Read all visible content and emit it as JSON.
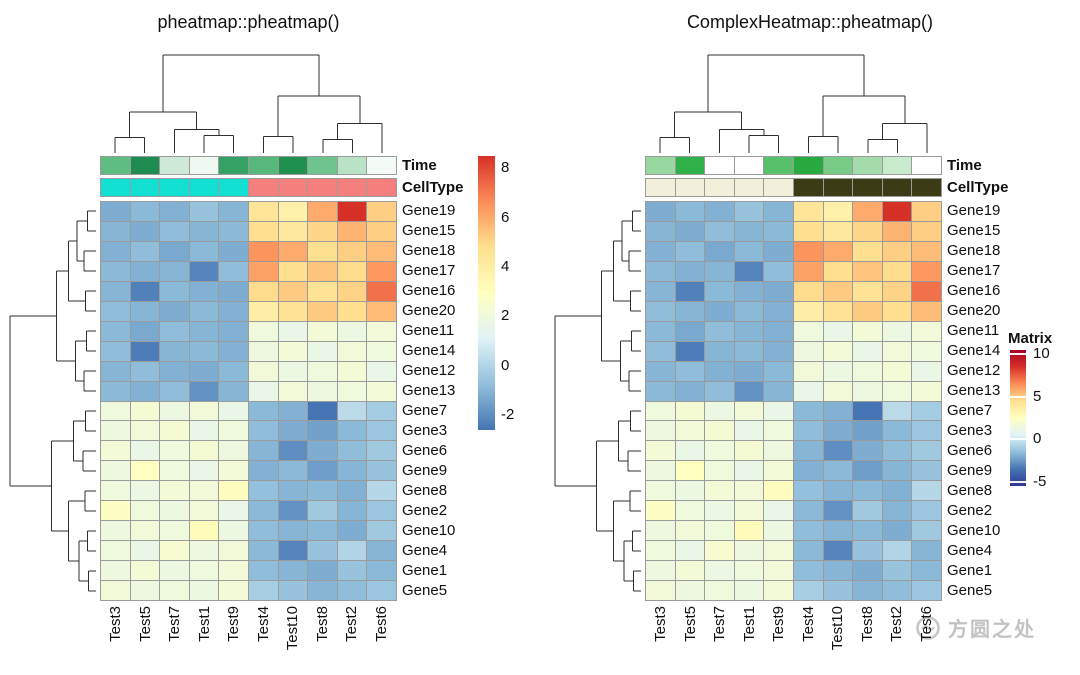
{
  "panels": [
    {
      "title": "pheatmap::pheatmap()",
      "annotations": {
        "time_label": "Time",
        "celltype_label": "CellType",
        "time_colors": [
          "#60BD82",
          "#1E8B4F",
          "#CFE9D8",
          "#EFF9F2",
          "#34A265",
          "#57B87B",
          "#20904F",
          "#6FC38D",
          "#B9E2C6",
          "#F4FBF6"
        ],
        "celltype_colors": [
          "#12E0D3",
          "#12E0D3",
          "#12E0D3",
          "#12E0D3",
          "#12E0D3",
          "#F57F7F",
          "#F57F7F",
          "#F57F7F",
          "#F57F7F",
          "#F57F7F"
        ]
      },
      "legend": {
        "ticks": [
          8,
          6,
          4,
          2,
          0,
          -2
        ],
        "range": [
          -2.6,
          8.5
        ],
        "bar_colors": [
          "#4575B4",
          "#91BFDB",
          "#E0F3F8",
          "#FFFFBF",
          "#FEE090",
          "#FC8D59",
          "#D73027"
        ]
      }
    },
    {
      "title": "ComplexHeatmap::pheatmap()",
      "annotations": {
        "time_label": "Time",
        "celltype_label": "CellType",
        "time_colors": [
          "#98D79F",
          "#2FB049",
          "#FFFFFF",
          "#FFFFFF",
          "#57C06A",
          "#27AA3F",
          "#77CB86",
          "#A4DBAA",
          "#C8EACD",
          "#FFFFFF"
        ],
        "celltype_colors": [
          "#F2F0DA",
          "#F2F0DA",
          "#F2F0DA",
          "#F2F0DA",
          "#F2F0DA",
          "#3B3C15",
          "#3B3C15",
          "#3B3C15",
          "#3B3C15",
          "#3B3C15"
        ]
      },
      "legend": {
        "title": "Matrix",
        "ticks": [
          10,
          5,
          0,
          -5
        ],
        "range": [
          -5.5,
          10.5
        ],
        "bar_colors": [
          "#313695",
          "#4575B4",
          "#91BFDB",
          "#E0F3F8",
          "#FFFFBF",
          "#FEE090",
          "#FC8D59",
          "#D73027",
          "#A50026"
        ]
      }
    }
  ],
  "chart_data": {
    "type": "heatmap",
    "note": "Both panels display the same clustered matrix; rows/columns listed in clustered display order",
    "rows": [
      "Gene19",
      "Gene15",
      "Gene18",
      "Gene17",
      "Gene16",
      "Gene20",
      "Gene11",
      "Gene14",
      "Gene12",
      "Gene13",
      "Gene7",
      "Gene3",
      "Gene6",
      "Gene9",
      "Gene8",
      "Gene2",
      "Gene10",
      "Gene4",
      "Gene1",
      "Gene5"
    ],
    "columns": [
      "Test3",
      "Test5",
      "Test7",
      "Test1",
      "Test9",
      "Test4",
      "Test10",
      "Test8",
      "Test2",
      "Test6"
    ],
    "values": [
      [
        -1.2,
        -0.9,
        -1.1,
        -0.6,
        -1.0,
        4.5,
        3.8,
        6.0,
        8.5,
        5.2
      ],
      [
        -1.0,
        -1.2,
        -0.8,
        -1.0,
        -0.9,
        4.8,
        4.3,
        5.0,
        5.8,
        5.2
      ],
      [
        -1.1,
        -0.8,
        -1.3,
        -0.9,
        -1.2,
        6.5,
        6.0,
        4.8,
        5.2,
        5.6
      ],
      [
        -0.9,
        -1.1,
        -1.0,
        -2.2,
        -0.8,
        6.2,
        4.8,
        5.4,
        4.9,
        6.4
      ],
      [
        -1.0,
        -2.3,
        -0.9,
        -1.1,
        -1.2,
        4.9,
        5.3,
        4.6,
        5.1,
        7.2
      ],
      [
        -0.8,
        -1.0,
        -1.2,
        -0.9,
        -1.1,
        4.0,
        4.6,
        5.3,
        4.8,
        5.6
      ],
      [
        -0.9,
        -1.3,
        -0.8,
        -1.0,
        -1.1,
        2.0,
        1.7,
        2.2,
        1.8,
        2.1
      ],
      [
        -0.8,
        -2.4,
        -1.0,
        -0.9,
        -1.1,
        1.9,
        2.2,
        1.7,
        2.1,
        2.0
      ],
      [
        -1.0,
        -0.8,
        -1.1,
        -1.2,
        -0.9,
        2.1,
        1.8,
        2.0,
        2.2,
        1.7
      ],
      [
        -0.9,
        -1.1,
        -0.8,
        -1.9,
        -1.0,
        1.7,
        2.1,
        1.9,
        2.0,
        2.2
      ],
      [
        2.0,
        2.3,
        1.8,
        2.1,
        1.7,
        -0.9,
        -1.1,
        -2.6,
        0.2,
        -0.3
      ],
      [
        1.9,
        2.1,
        2.3,
        1.7,
        2.0,
        -0.8,
        -1.2,
        -1.5,
        -0.9,
        -0.5
      ],
      [
        2.2,
        1.7,
        2.0,
        2.3,
        1.9,
        -1.0,
        -2.0,
        -1.2,
        -0.8,
        -0.4
      ],
      [
        1.9,
        2.9,
        2.0,
        1.7,
        2.2,
        -1.1,
        -0.9,
        -1.6,
        -1.0,
        -0.6
      ],
      [
        2.0,
        1.8,
        2.2,
        2.1,
        3.0,
        -0.7,
        -1.0,
        -0.9,
        -1.1,
        0.1
      ],
      [
        2.8,
        2.0,
        1.8,
        2.1,
        1.7,
        -0.9,
        -1.9,
        -0.4,
        -1.0,
        -0.5
      ],
      [
        1.9,
        2.1,
        2.0,
        3.1,
        1.8,
        -0.8,
        -1.0,
        -0.9,
        -1.2,
        -0.4
      ],
      [
        2.0,
        1.7,
        2.4,
        1.9,
        2.1,
        -0.9,
        -2.2,
        -0.6,
        0.0,
        -1.0
      ],
      [
        1.9,
        2.2,
        1.8,
        2.0,
        2.1,
        -0.8,
        -1.0,
        -1.2,
        -0.6,
        -0.9
      ],
      [
        2.1,
        1.9,
        2.0,
        1.8,
        2.2,
        -0.2,
        -0.6,
        -1.0,
        -0.8,
        -0.5
      ]
    ],
    "colormap": [
      "#4575B4",
      "#91BFDB",
      "#E0F3F8",
      "#FFFFBF",
      "#FEE090",
      "#FC8D59",
      "#D73027"
    ],
    "value_range": [
      -2.6,
      8.5
    ]
  },
  "dendrograms": {
    "column": {
      "h": 10,
      "children": [
        {
          "h": 4.2,
          "children": [
            {
              "h": 1.6,
              "children": [
                {
                  "leaf": 0
                },
                {
                  "leaf": 1
                }
              ]
            },
            {
              "h": 2.4,
              "children": [
                {
                  "leaf": 2
                },
                {
                  "h": 1.8,
                  "children": [
                    {
                      "leaf": 3
                    },
                    {
                      "leaf": 4
                    }
                  ]
                }
              ]
            }
          ]
        },
        {
          "h": 5.8,
          "children": [
            {
              "h": 1.7,
              "children": [
                {
                  "leaf": 5
                },
                {
                  "leaf": 6
                }
              ]
            },
            {
              "h": 3.0,
              "children": [
                {
                  "h": 1.4,
                  "children": [
                    {
                      "leaf": 7
                    },
                    {
                      "leaf": 8
                    }
                  ]
                },
                {
                  "leaf": 9
                }
              ]
            }
          ]
        }
      ]
    },
    "row": {
      "h": 10,
      "children": [
        {
          "h": 4.6,
          "children": [
            {
              "h": 3.2,
              "children": [
                {
                  "h": 2.2,
                  "children": [
                    {
                      "h": 1.0,
                      "children": [
                        {
                          "leaf": 0
                        },
                        {
                          "leaf": 1
                        }
                      ]
                    },
                    {
                      "h": 1.4,
                      "children": [
                        {
                          "leaf": 2
                        },
                        {
                          "leaf": 3
                        }
                      ]
                    }
                  ]
                },
                {
                  "h": 1.2,
                  "children": [
                    {
                      "leaf": 4
                    },
                    {
                      "leaf": 5
                    }
                  ]
                }
              ]
            },
            {
              "h": 2.4,
              "children": [
                {
                  "h": 1.1,
                  "children": [
                    {
                      "leaf": 6
                    },
                    {
                      "leaf": 7
                    }
                  ]
                },
                {
                  "h": 1.4,
                  "children": [
                    {
                      "leaf": 8
                    },
                    {
                      "leaf": 9
                    }
                  ]
                }
              ]
            }
          ]
        },
        {
          "h": 5.2,
          "children": [
            {
              "h": 2.6,
              "children": [
                {
                  "h": 1.2,
                  "children": [
                    {
                      "leaf": 10
                    },
                    {
                      "leaf": 11
                    }
                  ]
                },
                {
                  "h": 1.5,
                  "children": [
                    {
                      "leaf": 12
                    },
                    {
                      "leaf": 13
                    }
                  ]
                }
              ]
            },
            {
              "h": 3.2,
              "children": [
                {
                  "h": 1.3,
                  "children": [
                    {
                      "leaf": 14
                    },
                    {
                      "leaf": 15
                    }
                  ]
                },
                {
                  "h": 2.0,
                  "children": [
                    {
                      "h": 1.0,
                      "children": [
                        {
                          "leaf": 16
                        },
                        {
                          "leaf": 17
                        }
                      ]
                    },
                    {
                      "h": 0.9,
                      "children": [
                        {
                          "leaf": 18
                        },
                        {
                          "leaf": 19
                        }
                      ]
                    }
                  ]
                }
              ]
            }
          ]
        }
      ]
    }
  },
  "watermark": {
    "text": "方圆之处"
  }
}
